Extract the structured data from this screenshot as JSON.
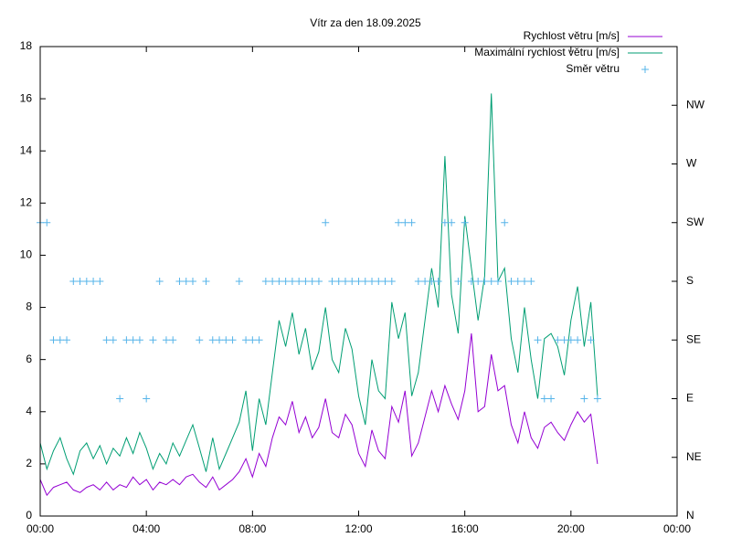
{
  "chart_data": {
    "type": "line",
    "title": "Vítr za den 18.09.2025",
    "x": [
      0,
      0.25,
      0.5,
      0.75,
      1,
      1.25,
      1.5,
      1.75,
      2,
      2.25,
      2.5,
      2.75,
      3,
      3.25,
      3.5,
      3.75,
      4,
      4.25,
      4.5,
      4.75,
      5,
      5.25,
      5.5,
      5.75,
      6,
      6.25,
      6.5,
      6.75,
      7,
      7.25,
      7.5,
      7.75,
      8,
      8.25,
      8.5,
      8.75,
      9,
      9.25,
      9.5,
      9.75,
      10,
      10.25,
      10.5,
      10.75,
      11,
      11.25,
      11.5,
      11.75,
      12,
      12.25,
      12.5,
      12.75,
      13,
      13.25,
      13.5,
      13.75,
      14,
      14.25,
      14.5,
      14.75,
      15,
      15.25,
      15.5,
      15.75,
      16,
      16.25,
      16.5,
      16.75,
      17,
      17.25,
      17.5,
      17.75,
      18,
      18.25,
      18.5,
      18.75,
      19,
      19.25,
      19.5,
      19.75,
      20,
      20.25,
      20.5,
      20.75,
      21
    ],
    "series": [
      {
        "name": "Rychlost větru [m/s]",
        "color": "#9400d3",
        "style": "line",
        "values": [
          1.4,
          0.8,
          1.1,
          1.2,
          1.3,
          1.0,
          0.9,
          1.1,
          1.2,
          1.0,
          1.3,
          1.0,
          1.2,
          1.1,
          1.5,
          1.2,
          1.4,
          1.0,
          1.3,
          1.2,
          1.4,
          1.2,
          1.5,
          1.6,
          1.3,
          1.1,
          1.5,
          1.0,
          1.2,
          1.4,
          1.7,
          2.2,
          1.5,
          2.4,
          1.9,
          3.0,
          3.8,
          3.5,
          4.4,
          3.2,
          3.8,
          3.0,
          3.4,
          4.5,
          3.2,
          3.0,
          3.9,
          3.5,
          2.4,
          1.9,
          3.3,
          2.5,
          2.2,
          4.2,
          3.6,
          4.8,
          2.3,
          2.8,
          3.8,
          4.8,
          4.0,
          5.0,
          4.3,
          3.7,
          4.8,
          7.0,
          4.0,
          4.2,
          6.2,
          4.8,
          5.0,
          3.5,
          2.8,
          4.0,
          3.0,
          2.6,
          3.4,
          3.6,
          3.2,
          2.9,
          3.5,
          4.0,
          3.6,
          3.9,
          2.0
        ]
      },
      {
        "name": "Maximální rychlost větru [m/s]",
        "color": "#009e73",
        "style": "line",
        "values": [
          2.8,
          1.8,
          2.5,
          3.0,
          2.2,
          1.6,
          2.5,
          2.8,
          2.2,
          2.7,
          2.0,
          2.6,
          2.3,
          3.0,
          2.4,
          3.2,
          2.6,
          1.8,
          2.4,
          2.0,
          2.8,
          2.3,
          2.9,
          3.5,
          2.6,
          1.7,
          3.0,
          1.8,
          2.4,
          3.0,
          3.6,
          4.8,
          2.5,
          4.5,
          3.5,
          5.5,
          7.5,
          6.5,
          7.8,
          6.2,
          7.2,
          5.6,
          6.3,
          8.0,
          6.0,
          5.5,
          7.2,
          6.4,
          4.6,
          3.5,
          6.0,
          4.8,
          4.5,
          8.2,
          6.8,
          7.8,
          4.6,
          5.5,
          7.5,
          9.5,
          8.0,
          13.8,
          8.5,
          7.0,
          11.5,
          9.5,
          7.5,
          9.2,
          16.2,
          9.0,
          9.5,
          6.8,
          5.5,
          8.0,
          6.0,
          4.5,
          6.8,
          7.0,
          6.5,
          5.4,
          7.5,
          8.8,
          6.5,
          8.2,
          4.6
        ]
      },
      {
        "name": "Směr větru",
        "color": "#56b4e9",
        "style": "points",
        "axis": "y2",
        "values": [
          5,
          5,
          3,
          3,
          3,
          4,
          4,
          4,
          4,
          4,
          3,
          3,
          2,
          3,
          3,
          3,
          2,
          3,
          4,
          3,
          3,
          4,
          4,
          4,
          3,
          4,
          3,
          3,
          3,
          3,
          4,
          3,
          3,
          3,
          4,
          4,
          4,
          4,
          4,
          4,
          4,
          4,
          4,
          5,
          4,
          4,
          4,
          4,
          4,
          4,
          4,
          4,
          4,
          4,
          5,
          5,
          5,
          4,
          4,
          4,
          4,
          5,
          5,
          4,
          5,
          4,
          4,
          4,
          4,
          4,
          5,
          4,
          4,
          4,
          4,
          3,
          2,
          2,
          3,
          3,
          3,
          3,
          2,
          3,
          2
        ]
      }
    ],
    "xlim": [
      0,
      24
    ],
    "xticks": [
      {
        "value": 0,
        "label": "00:00"
      },
      {
        "value": 4,
        "label": "04:00"
      },
      {
        "value": 8,
        "label": "08:00"
      },
      {
        "value": 12,
        "label": "12:00"
      },
      {
        "value": 16,
        "label": "16:00"
      },
      {
        "value": 20,
        "label": "20:00"
      },
      {
        "value": 24,
        "label": "00:00"
      }
    ],
    "ylim": [
      0,
      18
    ],
    "yticks": [
      0,
      2,
      4,
      6,
      8,
      10,
      12,
      14,
      16,
      18
    ],
    "y2lim": [
      0,
      8
    ],
    "y2ticks": [
      {
        "value": 0,
        "label": "N"
      },
      {
        "value": 1,
        "label": "NE"
      },
      {
        "value": 2,
        "label": "E"
      },
      {
        "value": 3,
        "label": "SE"
      },
      {
        "value": 4,
        "label": "S"
      },
      {
        "value": 5,
        "label": "SW"
      },
      {
        "value": 6,
        "label": "W"
      },
      {
        "value": 7,
        "label": "NW"
      }
    ],
    "legend": "top-right"
  }
}
